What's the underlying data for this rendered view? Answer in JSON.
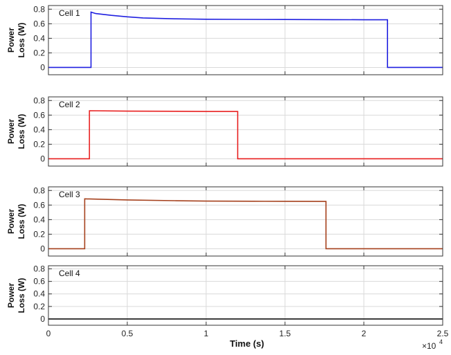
{
  "chart_data": {
    "type": "line",
    "xlabel": "Time (s)",
    "x_multiplier": "×10",
    "x_exponent": "4",
    "xlim": [
      0,
      2.5
    ],
    "xticks": [
      "0",
      "0.5",
      "1",
      "1.5",
      "2",
      "2.5"
    ],
    "xtick_values": [
      0,
      0.5,
      1,
      1.5,
      2,
      2.5
    ],
    "grid": true,
    "panels": [
      {
        "label": "Cell 1",
        "ylabel": [
          "Power",
          "Loss (W)"
        ],
        "ylim": [
          -0.1,
          0.85
        ],
        "yticks": [
          "0",
          "0.2",
          "0.4",
          "0.6",
          "0.8"
        ],
        "ytick_values": [
          0,
          0.2,
          0.4,
          0.6,
          0.8
        ],
        "color": "#1f1fe0",
        "x": [
          0,
          0.27,
          0.27,
          0.3,
          0.4,
          0.5,
          0.6,
          0.8,
          1.0,
          1.2,
          1.5,
          1.8,
          2.0,
          2.15,
          2.15,
          2.5
        ],
        "y": [
          0,
          0,
          0.76,
          0.74,
          0.715,
          0.695,
          0.68,
          0.668,
          0.662,
          0.66,
          0.658,
          0.656,
          0.655,
          0.655,
          0,
          0
        ]
      },
      {
        "label": "Cell 2",
        "ylabel": [
          "Power",
          "Loss (W)"
        ],
        "ylim": [
          -0.1,
          0.85
        ],
        "yticks": [
          "0",
          "0.2",
          "0.4",
          "0.6",
          "0.8"
        ],
        "ytick_values": [
          0,
          0.2,
          0.4,
          0.6,
          0.8
        ],
        "color": "#e81e1e",
        "x": [
          0,
          0.26,
          0.26,
          0.5,
          0.8,
          1.0,
          1.2,
          1.2,
          2.5
        ],
        "y": [
          0,
          0,
          0.66,
          0.655,
          0.652,
          0.65,
          0.65,
          0,
          0
        ]
      },
      {
        "label": "Cell 3",
        "ylabel": [
          "Power",
          "Loss (W)"
        ],
        "ylim": [
          -0.1,
          0.85
        ],
        "yticks": [
          "0",
          "0.2",
          "0.4",
          "0.6",
          "0.8"
        ],
        "ytick_values": [
          0,
          0.2,
          0.4,
          0.6,
          0.8
        ],
        "color": "#a5401c",
        "x": [
          0,
          0.23,
          0.23,
          0.5,
          0.8,
          1.0,
          1.3,
          1.5,
          1.76,
          1.76,
          2.5
        ],
        "y": [
          0,
          0,
          0.685,
          0.67,
          0.66,
          0.655,
          0.652,
          0.651,
          0.65,
          0,
          0
        ]
      },
      {
        "label": "Cell 4",
        "ylabel": [
          "Power",
          "Loss (W)"
        ],
        "ylim": [
          -0.1,
          0.85
        ],
        "yticks": [
          "0",
          "0.2",
          "0.4",
          "0.6",
          "0.8"
        ],
        "ytick_values": [
          0,
          0.2,
          0.4,
          0.6,
          0.8
        ],
        "color": "#111111",
        "x": [
          0,
          2.5
        ],
        "y": [
          0,
          0
        ]
      }
    ]
  }
}
